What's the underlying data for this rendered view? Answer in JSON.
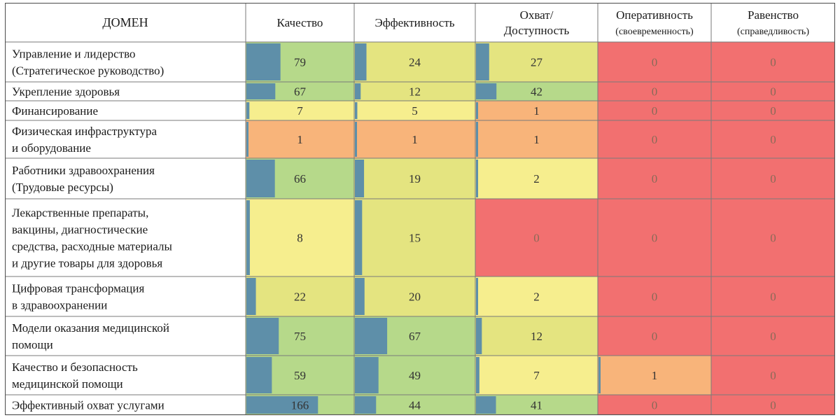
{
  "chart_data": {
    "type": "heatmap",
    "header_label": "ДОМЕН",
    "columns": [
      {
        "lines": [
          "Качество"
        ]
      },
      {
        "lines": [
          "Эффективность"
        ]
      },
      {
        "lines": [
          "Охват/",
          "Доступность"
        ]
      },
      {
        "lines": [
          "Оперативность",
          "(своевременность)"
        ]
      },
      {
        "lines": [
          "Равенство",
          "(справедливость)"
        ]
      }
    ],
    "rows": [
      {
        "label": [
          "Управление и лидерство",
          "(Стратегическое руководство)"
        ],
        "values": [
          79,
          24,
          27,
          0,
          0
        ]
      },
      {
        "label": [
          "Укрепление здоровья"
        ],
        "values": [
          67,
          12,
          42,
          0,
          0
        ]
      },
      {
        "label": [
          "Финансирование"
        ],
        "values": [
          7,
          5,
          1,
          0,
          0
        ]
      },
      {
        "label": [
          "Физическая инфраструктура",
          "и оборудование"
        ],
        "values": [
          1,
          1,
          1,
          0,
          0
        ]
      },
      {
        "label": [
          "Работники здравоохранения",
          "(Трудовые ресурсы)"
        ],
        "values": [
          66,
          19,
          2,
          0,
          0
        ]
      },
      {
        "label": [
          "Лекарственные препараты,",
          "вакцины, диагностические",
          "средства, расходные материалы",
          "и другие товары для здоровья"
        ],
        "values": [
          8,
          15,
          0,
          0,
          0
        ]
      },
      {
        "label": [
          "Цифровая трансформация",
          "в здравоохранении"
        ],
        "values": [
          22,
          20,
          2,
          0,
          0
        ]
      },
      {
        "label": [
          "Модели оказания медицинской",
          "помощи"
        ],
        "values": [
          75,
          67,
          12,
          0,
          0
        ]
      },
      {
        "label": [
          "Качество и безопасность",
          "медицинской помощи"
        ],
        "values": [
          59,
          49,
          7,
          1,
          0
        ]
      },
      {
        "label": [
          "Эффективный охват услугами"
        ],
        "values": [
          166,
          44,
          41,
          0,
          0
        ]
      }
    ],
    "bar_max": 166,
    "colors": {
      "zero": "#f27070",
      "one": "#f8b47a",
      "low": "#f6ee8e",
      "mid": "#e4e480",
      "high": "#b6d98a",
      "bar": "#5e8fa9",
      "grid": "#7a7a7a"
    }
  }
}
